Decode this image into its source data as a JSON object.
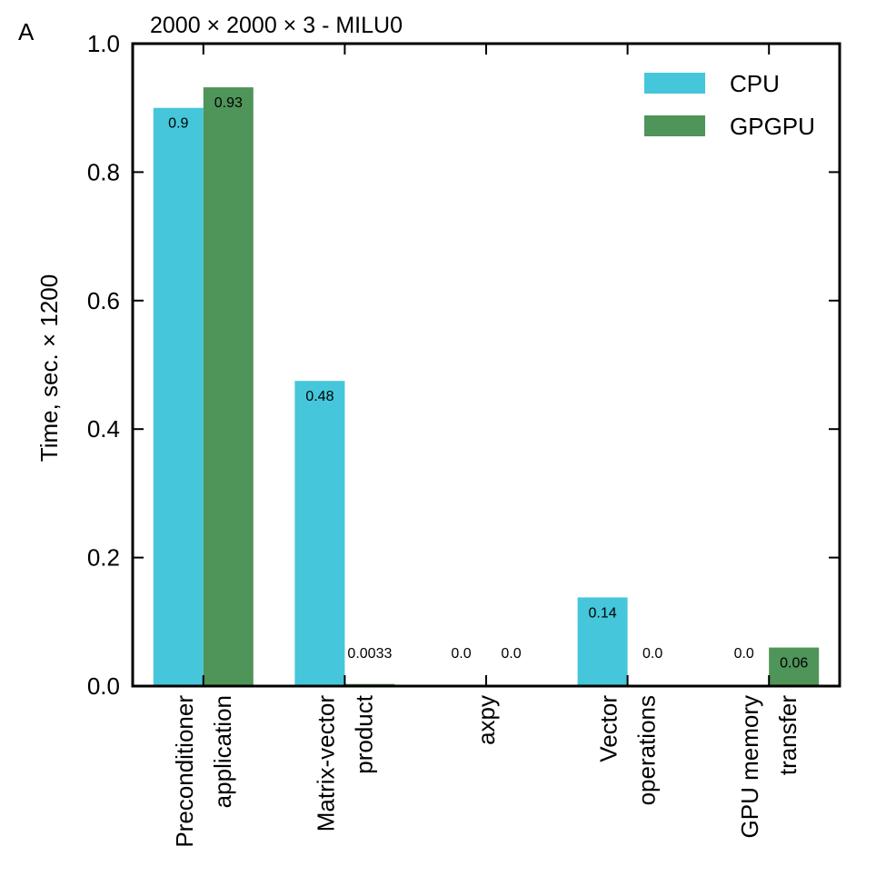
{
  "chart_data": {
    "type": "bar",
    "panel_label": "A",
    "title": "2000 × 2000 × 3 - MILU0",
    "xlabel": "",
    "ylabel": "Time, sec. × 1200",
    "ylim": [
      0,
      1.0
    ],
    "yticks": [
      0.0,
      0.2,
      0.4,
      0.6,
      0.8,
      1.0
    ],
    "ytick_labels": [
      "0.0",
      "0.2",
      "0.4",
      "0.6",
      "0.8",
      "1.0"
    ],
    "categories": [
      [
        "Preconditioner",
        "application"
      ],
      [
        "Matrix-vector",
        "product"
      ],
      [
        "axpy"
      ],
      [
        "Vector",
        "operations"
      ],
      [
        "GPU memory",
        "transfer"
      ]
    ],
    "series": [
      {
        "name": "CPU",
        "color": "#45C6DB",
        "values": [
          0.9,
          0.475,
          0.0,
          0.138,
          0.0
        ],
        "labels": [
          "0.9",
          "0.48",
          "0.0",
          "0.14",
          "0.0"
        ]
      },
      {
        "name": "GPGPU",
        "color": "#4F9458",
        "values": [
          0.932,
          0.0033,
          0.0,
          0.0,
          0.06
        ],
        "labels": [
          "0.93",
          "0.0033",
          "0.0",
          "0.0",
          "0.06"
        ]
      }
    ],
    "legend_position": "top-right",
    "grid": false
  }
}
